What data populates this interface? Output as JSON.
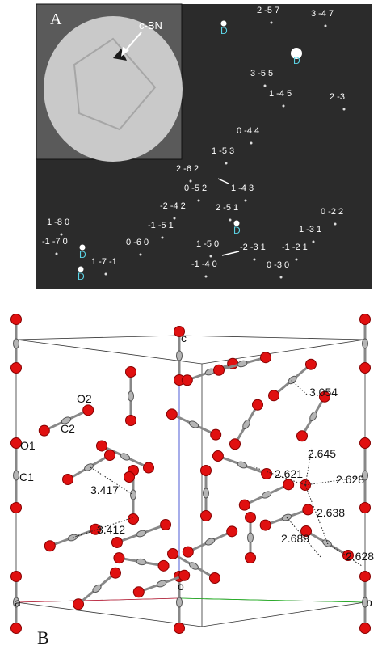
{
  "panel_a": {
    "label": "A",
    "inset_label": "c-BN",
    "spots": [
      "2 -5 7",
      "3 -4 7",
      "3 -5 5",
      "1 -4 5",
      "2 -3",
      "0 -4 4",
      "1 -5 3",
      "2 -6 2",
      "0 -5 2",
      "1 -4 3",
      "-2 -4 2",
      "2 -5 1",
      "0 -2 2",
      "-1 -5 1",
      "1 -8 0",
      "-1 -7 0",
      "0 -6 0",
      "1 -7 -1",
      "1 -5 0",
      "-2 -3 1",
      "1 -3 1",
      "-1 -2 1",
      "-1 -4 0",
      "0 -3 0"
    ],
    "d_markers": [
      "D",
      "D",
      "D",
      "D",
      "D"
    ]
  },
  "panel_b": {
    "label": "B",
    "atom_labels": [
      "O2",
      "C2",
      "O1",
      "C1"
    ],
    "axis_labels": [
      "c",
      "a",
      "o",
      "b"
    ],
    "distances": [
      "3.054",
      "2.645",
      "2.621",
      "2.628",
      "3.417",
      "2.638",
      "3.412",
      "2.688",
      "2.628"
    ]
  }
}
